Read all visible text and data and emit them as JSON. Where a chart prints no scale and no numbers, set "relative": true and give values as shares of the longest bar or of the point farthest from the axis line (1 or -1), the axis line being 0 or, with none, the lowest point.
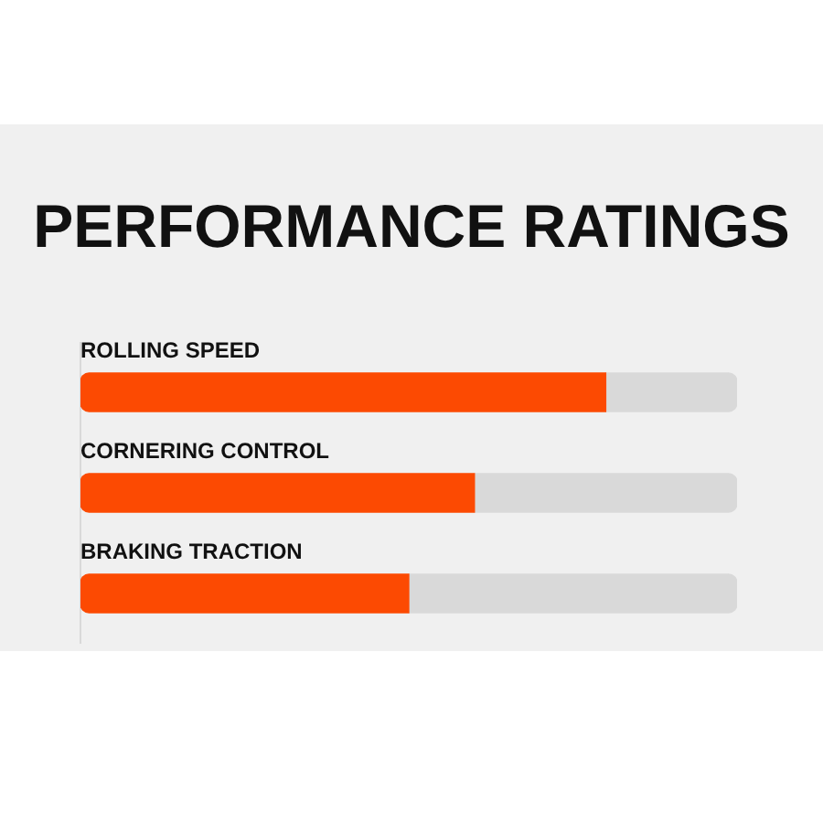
{
  "chart_data": {
    "type": "bar",
    "title": "PERFORMANCE RATINGS",
    "orientation": "horizontal",
    "stacked": true,
    "relative": true,
    "categories": [
      "ROLLING SPEED",
      "CORNERING CONTROL",
      "BRAKING TRACTION"
    ],
    "series": [
      {
        "color": "#fc4a02",
        "values": [
          0.8,
          0.6,
          0.5
        ]
      },
      {
        "color": "#d9d9d9",
        "values": [
          0.2,
          0.4,
          0.5
        ]
      }
    ]
  }
}
